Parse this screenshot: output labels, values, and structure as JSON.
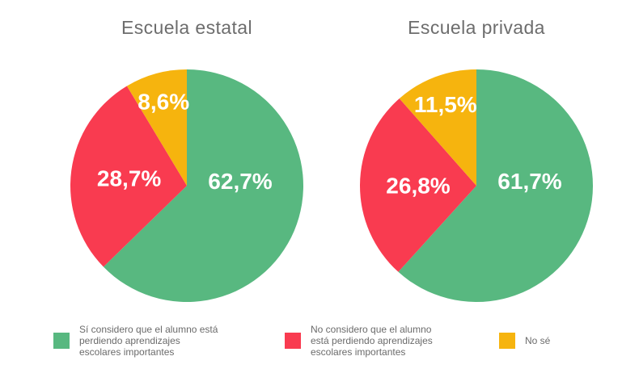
{
  "chart_data": [
    {
      "type": "pie",
      "title": "Escuela estatal",
      "unit": "%",
      "start_angle_deg": 0,
      "direction": "clockwise",
      "categories": [
        "Sí considero que el alumno está perdiendo aprendizajes escolares importantes",
        "No considero que el alumno está perdiendo aprendizajes escolares importantes",
        "No sé"
      ],
      "values": [
        62.7,
        28.7,
        8.6
      ],
      "display_labels": [
        "62,7%",
        "28,7%",
        "8,6%"
      ],
      "colors": [
        "#58b880",
        "#f93b50",
        "#f6b40e"
      ]
    },
    {
      "type": "pie",
      "title": "Escuela privada",
      "unit": "%",
      "start_angle_deg": 0,
      "direction": "clockwise",
      "categories": [
        "Sí considero que el alumno está perdiendo aprendizajes escolares importantes",
        "No considero que el alumno está perdiendo aprendizajes escolares importantes",
        "No sé"
      ],
      "values": [
        61.7,
        26.8,
        11.5
      ],
      "display_labels": [
        "61,7%",
        "26,8%",
        "11,5%"
      ],
      "colors": [
        "#58b880",
        "#f93b50",
        "#f6b40e"
      ]
    }
  ],
  "legend": {
    "position": "bottom",
    "items": [
      {
        "label": "Sí considero que el alumno está perdiendo aprendizajes escolares importantes",
        "color": "#58b880"
      },
      {
        "label": "No considero que el alumno está perdiendo aprendizajes escolares importantes",
        "color": "#f93b50"
      },
      {
        "label": "No sé",
        "color": "#f6b40e"
      }
    ]
  },
  "styles": {
    "background": "#ffffff",
    "title_color": "#6d6d6d",
    "legend_text_color": "#6b6b6b",
    "slice_label_color": "#ffffff"
  }
}
